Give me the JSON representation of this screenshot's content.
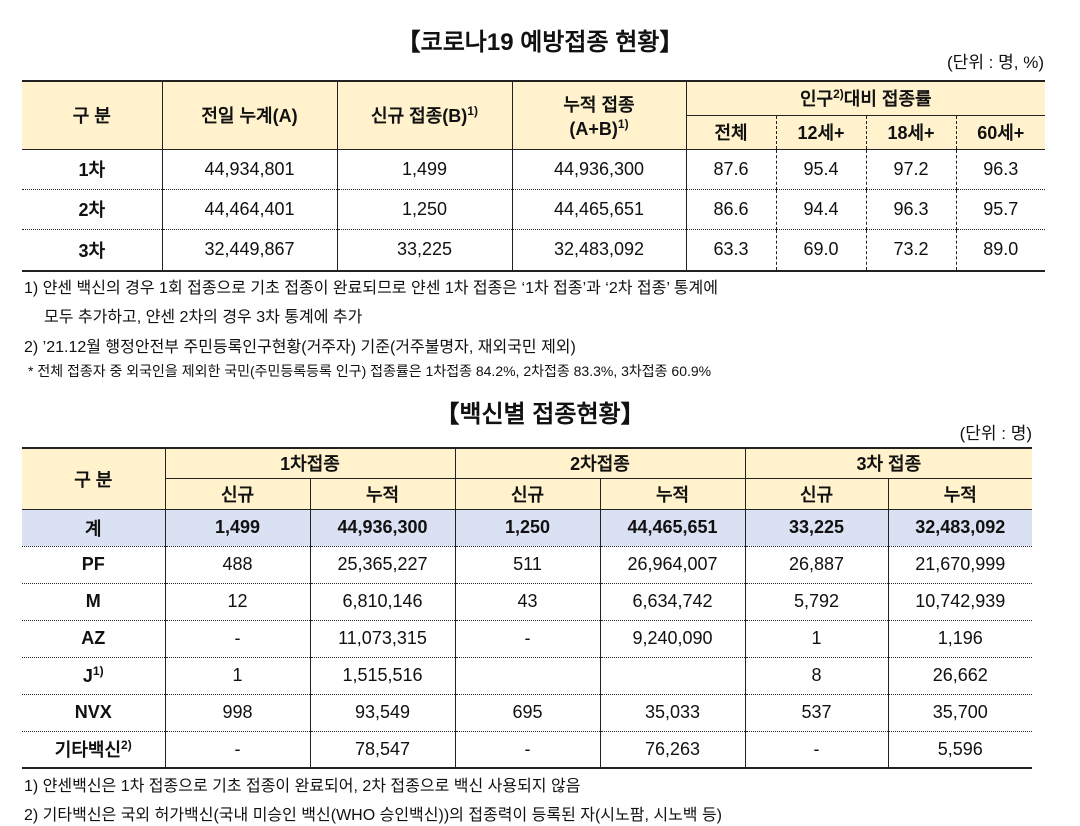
{
  "table1": {
    "title": "【코로나19 예방접종 현황】",
    "unit": "(단위 : 명, %)",
    "header": {
      "category": "구 분",
      "prev": "전일 누계(A)",
      "new": "신규 접종(B)",
      "new_sup": "1)",
      "cum": "누적 접종",
      "cum2": "(A+B)",
      "cum_sup": "1)",
      "rate": "인구",
      "rate_sup": "2)",
      "rate2": "대비 접종률",
      "sub": [
        "전체",
        "12세+",
        "18세+",
        "60세+"
      ]
    },
    "rows": [
      [
        "1차",
        "44,934,801",
        "1,499",
        "44,936,300",
        "87.6",
        "95.4",
        "97.2",
        "96.3"
      ],
      [
        "2차",
        "44,464,401",
        "1,250",
        "44,465,651",
        "86.6",
        "94.4",
        "96.3",
        "95.7"
      ],
      [
        "3차",
        "32,449,867",
        "33,225",
        "32,483,092",
        "63.3",
        "69.0",
        "73.2",
        "89.0"
      ]
    ]
  },
  "notes1": [
    "1) 얀센 백신의 경우 1회 접종으로 기초 접종이 완료되므로 얀센 1차 접종은 ‘1차 접종’과 ‘2차 접종’ 통계에",
    "모두 추가하고, 얀센 2차의 경우 3차 통계에 추가",
    "2) ’21.12월 행정안전부 주민등록인구현황(거주자) 기준(거주불명자, 재외국민 제외)",
    "* 전체 접종자 중 외국인을 제외한 국민(주민등록등록 인구) 접종률은 1차접종 84.2%, 2차접종 83.3%, 3차접종 60.9%"
  ],
  "table2": {
    "title": "【백신별 접종현황】",
    "unit": "(단위 : 명)",
    "header": {
      "category": "구 분",
      "groups": [
        "1차접종",
        "2차접종",
        "3차 접종"
      ],
      "sub": [
        "신규",
        "누적",
        "신규",
        "누적",
        "신규",
        "누적"
      ]
    },
    "rows": [
      {
        "label": "계",
        "cells": [
          "1,499",
          "44,936,300",
          "1,250",
          "44,465,651",
          "33,225",
          "32,483,092"
        ]
      },
      {
        "label": "PF",
        "cells": [
          "488",
          "25,365,227",
          "511",
          "26,964,007",
          "26,887",
          "21,670,999"
        ]
      },
      {
        "label": "M",
        "cells": [
          "12",
          "6,810,146",
          "43",
          "6,634,742",
          "5,792",
          "10,742,939"
        ]
      },
      {
        "label": "AZ",
        "cells": [
          "-",
          "11,073,315",
          "-",
          "9,240,090",
          "1",
          "1,196"
        ]
      },
      {
        "label": "J",
        "sup": "1)",
        "cells": [
          "1",
          "1,515,516",
          null,
          null,
          "8",
          "26,662"
        ]
      },
      {
        "label": "NVX",
        "cells": [
          "998",
          "93,549",
          "695",
          "35,033",
          "537",
          "35,700"
        ]
      },
      {
        "label": "기타백신",
        "sup": "2)",
        "cells": [
          "-",
          "78,547",
          "-",
          "76,263",
          "-",
          "5,596"
        ]
      }
    ]
  },
  "notes2": [
    "1) 얀센백신은 1차 접종으로 기초 접종이 완료되어, 2차 접종으로 백신 사용되지 않음",
    "2) 기타백신은 국외 허가백신(국내 미승인 백신(WHO 승인백신))의 접종력이 등록된 자(시노팜, 시노백 등)"
  ]
}
